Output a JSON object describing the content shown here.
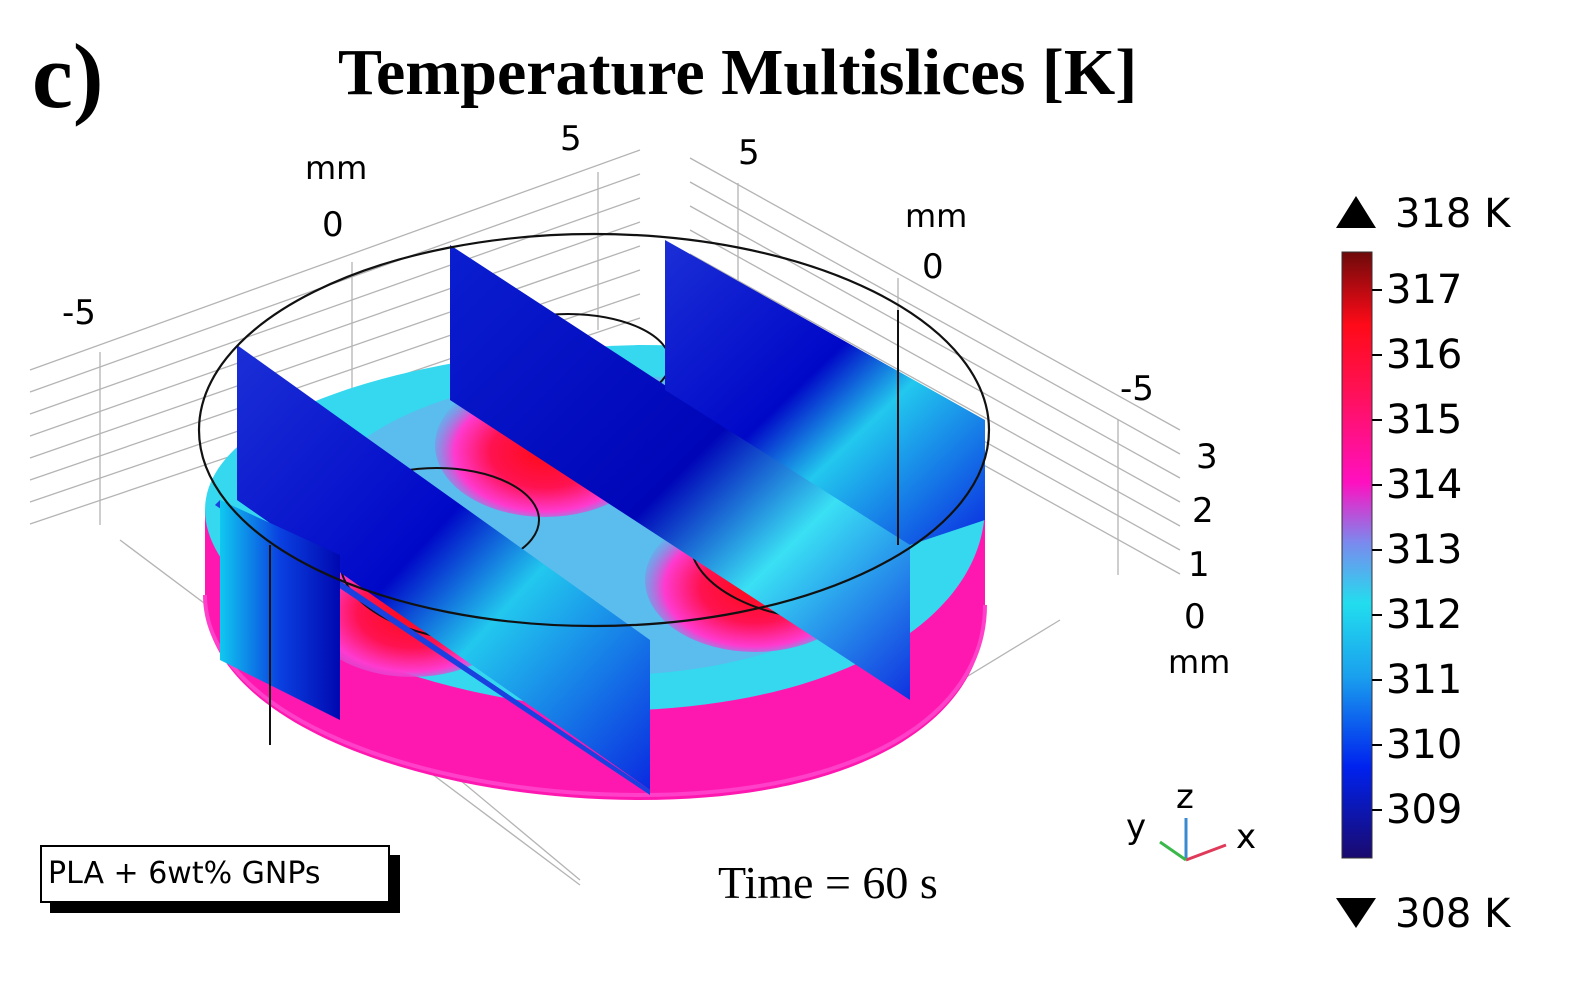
{
  "panel_label": "c)",
  "title": "Temperature Multislices [K]",
  "axes": {
    "x_ticks": [
      "-5",
      "0",
      "5"
    ],
    "x_unit": "mm",
    "y_ticks": [
      "5",
      "0",
      "-5"
    ],
    "y_unit": "mm",
    "z_ticks": [
      "3",
      "2",
      "1",
      "0"
    ],
    "z_unit": "mm"
  },
  "colorbar": {
    "max_label": "318 K",
    "min_label": "308 K",
    "min": 308,
    "max": 318,
    "labels": [
      "317",
      "316",
      "315",
      "314",
      "313",
      "312",
      "311",
      "310",
      "309"
    ],
    "colors": {
      "low": "#1a0a6e",
      "blue": "#0022ee",
      "cyan": "#22ddee",
      "magenta": "#ff10c0",
      "red": "#ff0a18",
      "high": "#6e0a0a"
    }
  },
  "triad": {
    "x": "x",
    "y": "y",
    "z": "z"
  },
  "material": "PLA + 6wt% GNPs",
  "time_label": "Time = 60 s"
}
